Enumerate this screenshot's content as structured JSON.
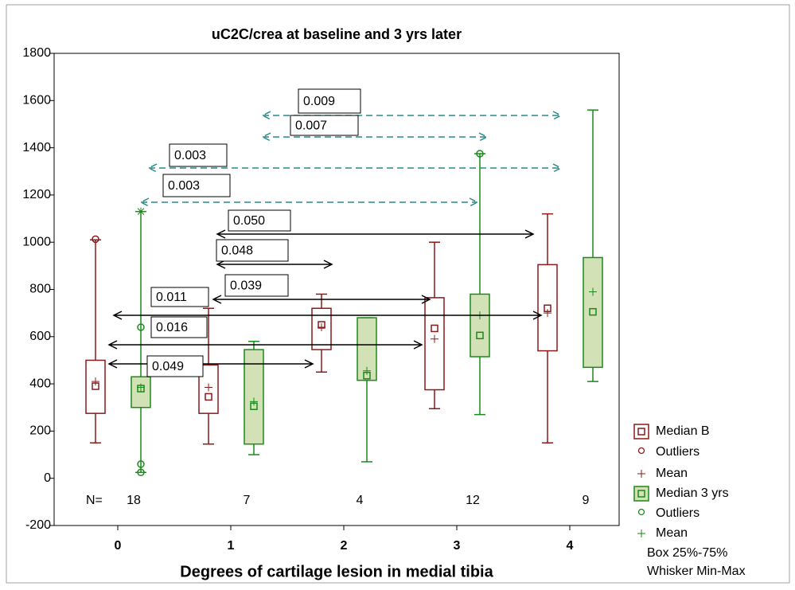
{
  "chart_data": {
    "type": "box",
    "title": "uC2C/crea at baseline and 3 yrs later",
    "xlabel": "Degrees of cartilage lesion in medial tibia",
    "categories": [
      "0",
      "1",
      "2",
      "3",
      "4"
    ],
    "ylim": [
      -200,
      1800
    ],
    "yticks": [
      -200,
      0,
      200,
      400,
      600,
      800,
      1000,
      1200,
      1400,
      1600,
      1800
    ],
    "n_label": "N=",
    "n": [
      18,
      7,
      4,
      12,
      9
    ],
    "series": [
      {
        "color": "#8b1a1a",
        "fill": "#ffffff",
        "min": [
          150,
          145,
          450,
          295,
          150
        ],
        "q1": [
          275,
          275,
          545,
          375,
          540
        ],
        "median": [
          390,
          345,
          650,
          635,
          720
        ],
        "mean": [
          410,
          385,
          640,
          590,
          700
        ],
        "q3": [
          500,
          480,
          720,
          765,
          905
        ],
        "max": [
          1010,
          720,
          780,
          1000,
          1120
        ],
        "outliers": [
          [
            1013
          ],
          [],
          [],
          [],
          []
        ],
        "extremes": [
          [],
          [],
          [],
          [],
          []
        ]
      },
      {
        "color": "#1a8a1a",
        "fill": "#d3e2b6",
        "min": [
          25,
          100,
          70,
          270,
          410
        ],
        "q1": [
          300,
          145,
          415,
          515,
          470
        ],
        "median": [
          380,
          305,
          435,
          605,
          705
        ],
        "mean": [
          385,
          325,
          455,
          690,
          790
        ],
        "q3": [
          430,
          545,
          680,
          780,
          935
        ],
        "max": [
          1130,
          580,
          680,
          1375,
          1560
        ],
        "outliers": [
          [
            640,
            60,
            25
          ],
          [],
          [],
          [
            1375
          ],
          []
        ],
        "extremes": [
          [
            1130
          ],
          [],
          [],
          [],
          []
        ]
      }
    ],
    "annotations": [
      "0.009",
      "0.007",
      "0.003",
      "0.003",
      "0.050",
      "0.048",
      "0.039",
      "0.011",
      "0.016",
      "0.049"
    ],
    "legend": [
      "Median B",
      "Outliers",
      "Mean",
      "Median 3 yrs",
      "Outliers",
      "Mean",
      "Box 25%-75%",
      "Whisker Min-Max"
    ]
  }
}
